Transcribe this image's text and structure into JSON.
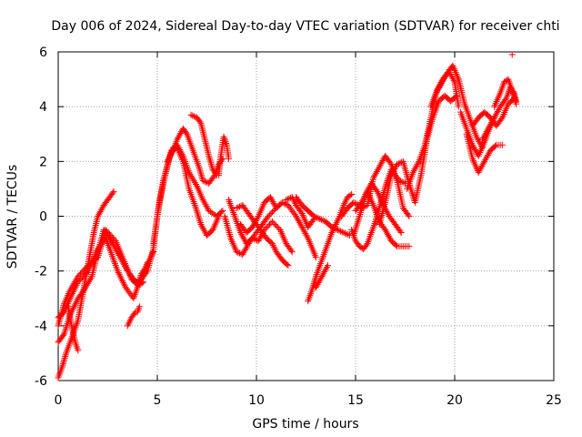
{
  "chart_data": {
    "type": "scatter",
    "title": "Day 006 of 2024, Sidereal Day-to-day VTEC variation (SDTVAR) for receiver chti",
    "xlabel": "GPS time / hours",
    "ylabel": "SDTVAR / TECUs",
    "xlim": [
      0,
      25
    ],
    "ylim": [
      -6,
      6
    ],
    "x_ticks": [
      "0",
      "5",
      "10",
      "15",
      "20",
      "25"
    ],
    "y_ticks": [
      "-6",
      "-4",
      "-2",
      "0",
      "2",
      "4",
      "6"
    ],
    "x_tick_values": [
      0,
      5,
      10,
      15,
      20,
      25
    ],
    "y_tick_values": [
      -6,
      -4,
      -2,
      0,
      2,
      4,
      6
    ],
    "grid": true,
    "marker": "+",
    "color": "#ff0000",
    "series": [
      {
        "x": [
          0.0,
          0.2,
          0.4,
          0.6,
          0.8,
          1.0,
          1.2,
          1.4,
          1.6,
          1.8,
          2.0,
          2.3,
          2.6,
          2.8
        ],
        "y": [
          -5.9,
          -5.5,
          -5.0,
          -4.6,
          -4.2,
          -3.8,
          -3.0,
          -2.2,
          -1.4,
          -0.6,
          0.0,
          0.4,
          0.7,
          0.9
        ]
      },
      {
        "x": [
          0.0,
          0.3,
          0.6,
          1.0,
          1.3,
          1.7,
          2.0,
          2.3,
          2.6,
          2.9,
          3.2,
          3.5,
          3.8,
          4.1,
          4.3
        ],
        "y": [
          -4.6,
          -4.3,
          -3.6,
          -3.0,
          -2.7,
          -2.2,
          -1.3,
          -0.5,
          -0.8,
          -1.2,
          -1.6,
          -2.0,
          -2.3,
          -2.5,
          -2.4
        ]
      },
      {
        "x": [
          0.0,
          0.3,
          0.6,
          1.0,
          1.4,
          1.7,
          2.0,
          2.4,
          2.7,
          3.0,
          3.4,
          3.8,
          4.0,
          4.2,
          4.4,
          4.5
        ],
        "y": [
          -3.7,
          -3.5,
          -3.0,
          -2.4,
          -2.1,
          -1.7,
          -1.2,
          -0.8,
          -1.4,
          -2.0,
          -2.6,
          -3.0,
          -2.6,
          -2.1,
          -1.9,
          -1.7
        ]
      },
      {
        "x": [
          0.0,
          0.3,
          0.6,
          1.0,
          1.5,
          2.0,
          2.4,
          2.9,
          3.3,
          3.7,
          4.0,
          4.3,
          4.6,
          4.8
        ],
        "y": [
          -4.0,
          -3.2,
          -2.7,
          -2.2,
          -1.8,
          -1.5,
          -0.5,
          -0.9,
          -1.6,
          -2.3,
          -2.5,
          -2.1,
          -1.6,
          -1.3
        ]
      },
      {
        "x": [
          0.5,
          0.7,
          0.9,
          1.0
        ],
        "y": [
          -3.3,
          -4.1,
          -4.7,
          -4.9
        ]
      },
      {
        "x": [
          3.5,
          3.7,
          3.9,
          4.0,
          4.1
        ],
        "y": [
          -4.0,
          -3.7,
          -3.5,
          -3.5,
          -3.3
        ]
      },
      {
        "x": [
          4.2,
          4.5,
          4.8,
          5.0,
          5.3,
          5.6,
          5.8,
          6.0,
          6.3,
          6.6,
          7.0,
          7.3,
          7.6,
          8.0,
          8.3
        ],
        "y": [
          -2.3,
          -2.0,
          -1.2,
          0.0,
          1.3,
          2.1,
          2.5,
          2.6,
          2.2,
          1.6,
          1.1,
          0.6,
          0.2,
          0.0,
          0.2
        ]
      },
      {
        "x": [
          4.8,
          5.1,
          5.4,
          5.7,
          6.0,
          6.3,
          6.6,
          6.9,
          7.2,
          7.5,
          7.8,
          8.1
        ],
        "y": [
          -1.0,
          0.5,
          1.5,
          2.4,
          2.5,
          2.0,
          1.0,
          0.4,
          -0.3,
          -0.7,
          -0.5,
          0.0
        ]
      },
      {
        "x": [
          5.5,
          5.8,
          6.0,
          6.3,
          6.5,
          6.7,
          6.9,
          7.1,
          7.3,
          7.6,
          7.9,
          8.1,
          8.3
        ],
        "y": [
          2.0,
          2.4,
          2.8,
          3.2,
          3.0,
          2.6,
          2.2,
          1.8,
          1.3,
          1.2,
          1.5,
          1.9,
          2.1
        ]
      },
      {
        "x": [
          6.7,
          7.0,
          7.2,
          7.4,
          7.6,
          7.8,
          8.0
        ],
        "y": [
          3.7,
          3.6,
          3.4,
          2.8,
          2.2,
          1.7,
          1.5
        ]
      },
      {
        "x": [
          8.1,
          8.2,
          8.35,
          8.5,
          8.6
        ],
        "y": [
          1.5,
          2.2,
          2.9,
          2.6,
          2.1
        ]
      },
      {
        "x": [
          8.4,
          8.7,
          9.0,
          9.3,
          9.6,
          10.0,
          10.3,
          10.6,
          11.0,
          11.3,
          11.6,
          12.0,
          12.3,
          12.6,
          13.0
        ],
        "y": [
          0.0,
          -0.8,
          -1.3,
          -1.4,
          -1.0,
          -0.6,
          -0.3,
          0.0,
          0.3,
          0.5,
          0.4,
          0.0,
          -0.4,
          -0.8,
          -1.5
        ]
      },
      {
        "x": [
          8.6,
          8.9,
          9.2,
          9.5,
          9.8,
          10.1,
          10.4,
          10.8,
          11.2,
          11.5,
          11.8
        ],
        "y": [
          0.6,
          0.0,
          -0.6,
          -1.0,
          -0.8,
          -0.9,
          -0.5,
          -0.2,
          -0.5,
          -1.0,
          -1.3
        ]
      },
      {
        "x": [
          9.0,
          9.3,
          9.6,
          9.9,
          10.2,
          10.5,
          10.8,
          11.0,
          11.3,
          11.6
        ],
        "y": [
          0.3,
          0.4,
          0.1,
          -0.2,
          -0.5,
          -0.8,
          -1.0,
          -1.3,
          -1.6,
          -1.8
        ]
      },
      {
        "x": [
          9.2,
          9.5,
          9.8,
          10.1,
          10.4,
          10.7,
          11.0
        ],
        "y": [
          -0.3,
          -0.6,
          -0.4,
          0.0,
          0.5,
          0.7,
          0.3
        ]
      },
      {
        "x": [
          11.5,
          11.8,
          12.0,
          12.3,
          12.6,
          12.9
        ],
        "y": [
          0.6,
          0.7,
          0.4,
          0.1,
          -0.4,
          -0.1
        ]
      },
      {
        "x": [
          12.0,
          12.3,
          12.6,
          12.9,
          13.2,
          13.5,
          13.8,
          14.1,
          14.4,
          14.7
        ],
        "y": [
          0.7,
          0.4,
          0.2,
          0.0,
          -0.1,
          -0.2,
          -0.4,
          -0.5,
          -0.6,
          -0.7
        ]
      },
      {
        "x": [
          12.6,
          12.8,
          13.0,
          13.2,
          13.4,
          13.6,
          13.8,
          14.0,
          14.2,
          14.4,
          14.6,
          14.8
        ],
        "y": [
          -3.1,
          -2.7,
          -2.2,
          -1.8,
          -1.4,
          -1.0,
          -0.6,
          -0.3,
          0.0,
          0.4,
          0.7,
          0.8
        ]
      },
      {
        "x": [
          13.0,
          13.3,
          13.6
        ],
        "y": [
          -2.6,
          -2.2,
          -1.8
        ]
      },
      {
        "x": [
          14.3,
          14.6,
          14.9,
          15.2
        ],
        "y": [
          0.0,
          0.3,
          0.5,
          0.4
        ]
      },
      {
        "x": [
          14.8,
          15.0,
          15.2,
          15.4,
          15.6,
          15.8,
          16.0,
          16.2,
          16.4,
          16.6,
          16.8,
          17.0,
          17.2,
          17.5
        ],
        "y": [
          -0.5,
          -0.9,
          -1.1,
          -1.2,
          -1.0,
          -0.6,
          -0.2,
          0.3,
          0.8,
          1.3,
          1.7,
          1.5,
          1.3,
          1.2
        ]
      },
      {
        "x": [
          14.9,
          15.2,
          15.5,
          15.8,
          16.1,
          16.4,
          16.7,
          17.0,
          17.3
        ],
        "y": [
          -0.7,
          0.0,
          0.8,
          1.2,
          0.9,
          0.4,
          0.0,
          -0.3,
          -0.6
        ]
      },
      {
        "x": [
          15.0,
          15.3,
          15.6,
          15.9,
          16.2,
          16.5,
          16.8,
          17.1,
          17.4,
          17.7
        ],
        "y": [
          0.2,
          0.5,
          0.9,
          0.4,
          -0.2,
          -0.5,
          -0.9,
          -1.1,
          -1.1,
          -1.1
        ]
      },
      {
        "x": [
          15.3,
          15.6,
          15.9,
          16.2,
          16.5,
          16.8,
          17.1,
          17.4,
          17.7
        ],
        "y": [
          0.3,
          0.4,
          1.4,
          1.8,
          2.2,
          1.9,
          1.3,
          0.3,
          0.0
        ]
      },
      {
        "x": [
          16.2,
          16.5,
          16.8,
          17.1,
          17.4,
          17.7,
          18.0,
          18.3,
          18.6,
          18.9,
          19.2,
          19.5,
          19.8,
          20.1
        ],
        "y": [
          -0.3,
          0.5,
          1.5,
          1.9,
          2.0,
          1.2,
          0.5,
          1.5,
          2.8,
          3.6,
          4.2,
          4.4,
          4.2,
          4.4
        ]
      },
      {
        "x": [
          17.6,
          17.9,
          18.2,
          18.5,
          18.8,
          19.1,
          19.4,
          19.7,
          20.0,
          20.2
        ],
        "y": [
          1.0,
          1.6,
          2.0,
          2.6,
          3.6,
          4.6,
          5.0,
          5.3,
          4.9,
          4.0
        ]
      },
      {
        "x": [
          18.8,
          19.0,
          19.3,
          19.6,
          19.9,
          20.2,
          20.5,
          20.8,
          21.1,
          21.4
        ],
        "y": [
          4.0,
          4.4,
          4.8,
          5.2,
          5.5,
          5.0,
          4.1,
          3.5,
          2.9,
          2.5
        ]
      },
      {
        "x": [
          20.3,
          20.6,
          20.9,
          21.2,
          21.5,
          21.8,
          22.0
        ],
        "y": [
          3.8,
          3.2,
          2.6,
          2.2,
          2.7,
          3.3,
          3.6
        ]
      },
      {
        "x": [
          20.6,
          20.9,
          21.2,
          21.5,
          21.8,
          22.1,
          22.4
        ],
        "y": [
          3.0,
          2.1,
          1.6,
          2.0,
          2.4,
          2.6,
          2.6
        ]
      },
      {
        "x": [
          20.9,
          21.2,
          21.5,
          21.8,
          22.1,
          22.4,
          22.7,
          23.0
        ],
        "y": [
          3.3,
          3.6,
          3.8,
          3.6,
          3.3,
          3.6,
          4.1,
          4.3
        ]
      },
      {
        "x": [
          21.4,
          21.7,
          22.0,
          22.3,
          22.6,
          22.8,
          23.0,
          23.1
        ],
        "y": [
          2.8,
          3.2,
          3.6,
          4.0,
          4.3,
          4.7,
          4.5,
          4.2
        ]
      },
      {
        "x": [
          22.0,
          22.3,
          22.5,
          22.7,
          22.9,
          23.1
        ],
        "y": [
          4.0,
          4.5,
          4.9,
          5.0,
          4.6,
          4.1
        ]
      },
      {
        "x": [
          22.9
        ],
        "y": [
          5.9
        ]
      }
    ]
  }
}
